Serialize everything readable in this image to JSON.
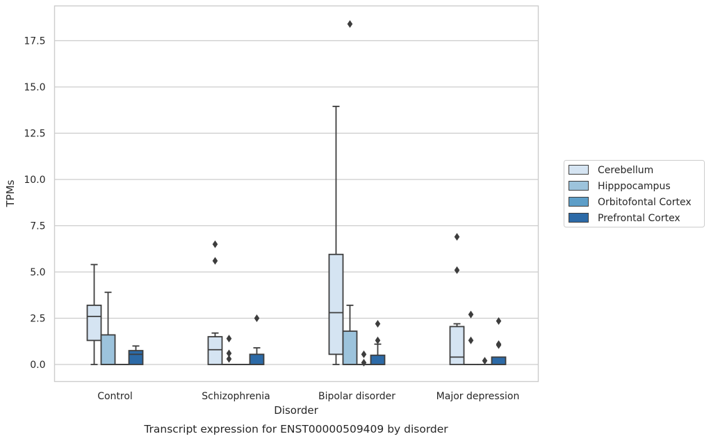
{
  "chart_data": {
    "type": "box",
    "xlabel": "Disorder",
    "ylabel": "TPMs",
    "caption": "Transcript expression for ENST00000509409 by disorder",
    "ylim": [
      -0.9,
      19.3
    ],
    "yticks": [
      0.0,
      2.5,
      5.0,
      7.5,
      10.0,
      12.5,
      15.0,
      17.5
    ],
    "ytick_labels": [
      "0.0",
      "2.5",
      "5.0",
      "7.5",
      "10.0",
      "12.5",
      "15.0",
      "17.5"
    ],
    "grid": "horizontal",
    "legend_position": "right",
    "categories": [
      "Control",
      "Schizophrenia",
      "Bipolar disorder",
      "Major depression"
    ],
    "series": [
      {
        "name": "Cerebellum",
        "color": "#d5e4f2",
        "boxes": [
          {
            "q1": 1.3,
            "median": 2.6,
            "q3": 3.2,
            "whislo": 0.0,
            "whishi": 5.4,
            "fliers": []
          },
          {
            "q1": 0.0,
            "median": 0.8,
            "q3": 1.5,
            "whislo": 0.0,
            "whishi": 1.7,
            "fliers": [
              5.6,
              6.5
            ]
          },
          {
            "q1": 0.55,
            "median": 2.8,
            "q3": 5.95,
            "whislo": 0.0,
            "whishi": 13.95,
            "fliers": []
          },
          {
            "q1": 0.0,
            "median": 0.4,
            "q3": 2.05,
            "whislo": 0.0,
            "whishi": 2.2,
            "fliers": [
              5.1,
              6.9
            ]
          }
        ]
      },
      {
        "name": "Hipppocampus",
        "color": "#9cc3dc",
        "boxes": [
          {
            "q1": 0.0,
            "median": 0.0,
            "q3": 1.6,
            "whislo": 0.0,
            "whishi": 3.9,
            "fliers": []
          },
          {
            "q1": 0.0,
            "median": 0.0,
            "q3": 0.0,
            "whislo": 0.0,
            "whishi": 0.0,
            "fliers": [
              0.3,
              0.6,
              1.4
            ]
          },
          {
            "q1": 0.0,
            "median": 0.0,
            "q3": 1.8,
            "whislo": 0.0,
            "whishi": 3.2,
            "fliers": [
              18.4
            ]
          },
          {
            "q1": 0.0,
            "median": 0.0,
            "q3": 0.0,
            "whislo": 0.0,
            "whishi": 0.0,
            "fliers": [
              1.3,
              2.7
            ]
          }
        ]
      },
      {
        "name": "Orbitofontal Cortex",
        "color": "#5d9ec8",
        "boxes": [
          {
            "q1": 0.0,
            "median": 0.0,
            "q3": 0.0,
            "whislo": 0.0,
            "whishi": 0.0,
            "fliers": []
          },
          {
            "q1": 0.0,
            "median": 0.0,
            "q3": 0.0,
            "whislo": 0.0,
            "whishi": 0.0,
            "fliers": []
          },
          {
            "q1": 0.0,
            "median": 0.0,
            "q3": 0.0,
            "whislo": 0.0,
            "whishi": 0.0,
            "fliers": [
              0.1,
              0.55
            ]
          },
          {
            "q1": 0.0,
            "median": 0.0,
            "q3": 0.0,
            "whislo": 0.0,
            "whishi": 0.0,
            "fliers": [
              0.2
            ]
          }
        ]
      },
      {
        "name": "Prefrontal Cortex",
        "color": "#2c6aa7",
        "boxes": [
          {
            "q1": 0.0,
            "median": 0.55,
            "q3": 0.75,
            "whislo": 0.0,
            "whishi": 1.0,
            "fliers": []
          },
          {
            "q1": 0.0,
            "median": 0.0,
            "q3": 0.55,
            "whislo": 0.0,
            "whishi": 0.9,
            "fliers": [
              2.5
            ]
          },
          {
            "q1": 0.0,
            "median": 0.0,
            "q3": 0.5,
            "whislo": 0.0,
            "whishi": 1.1,
            "fliers": [
              1.3,
              2.2
            ]
          },
          {
            "q1": 0.0,
            "median": 0.0,
            "q3": 0.4,
            "whislo": 0.0,
            "whishi": 0.4,
            "fliers": [
              1.05,
              1.1,
              2.35
            ]
          }
        ]
      }
    ]
  }
}
